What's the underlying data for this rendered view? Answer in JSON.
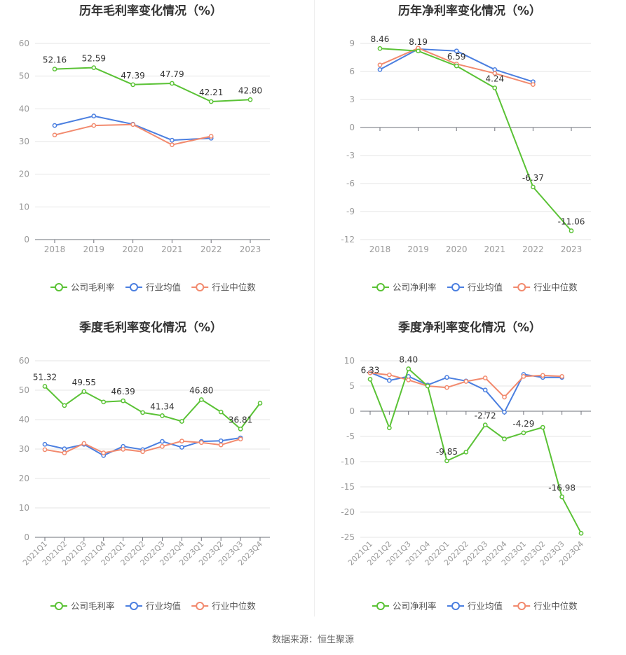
{
  "colors": {
    "company": "#5ac235",
    "industry_avg": "#4b7fe0",
    "industry_median": "#f28a6e",
    "grid": "#e6e6e6",
    "axis": "#6e7079",
    "tick_text": "#9a9a9a",
    "label_text": "#333333"
  },
  "footer": {
    "source": "数据来源：恒生聚源"
  },
  "chart_data": [
    {
      "type": "line",
      "title": "历年毛利率变化情况（%）",
      "categories": [
        "2018",
        "2019",
        "2020",
        "2021",
        "2022",
        "2023"
      ],
      "ylim": [
        0,
        60
      ],
      "yticks": [
        0,
        10,
        20,
        30,
        40,
        50,
        60
      ],
      "rotate_x": false,
      "series": [
        {
          "name": "公司毛利率",
          "color_key": "company",
          "values": [
            52.16,
            52.59,
            47.39,
            47.79,
            42.21,
            42.8
          ],
          "labels": [
            "52.16",
            "52.59",
            "47.39",
            "47.79",
            "42.21",
            "42.80"
          ]
        },
        {
          "name": "行业均值",
          "color_key": "industry_avg",
          "values": [
            34.9,
            37.8,
            35.3,
            30.4,
            31.0,
            null
          ]
        },
        {
          "name": "行业中位数",
          "color_key": "industry_median",
          "values": [
            32.0,
            34.9,
            35.2,
            29.0,
            31.6,
            null
          ]
        }
      ]
    },
    {
      "type": "line",
      "title": "历年净利率变化情况（%）",
      "categories": [
        "2018",
        "2019",
        "2020",
        "2021",
        "2022",
        "2023"
      ],
      "ylim": [
        -12,
        9
      ],
      "yticks": [
        -12,
        -9,
        -6,
        -3,
        0,
        3,
        6,
        9
      ],
      "rotate_x": false,
      "series": [
        {
          "name": "公司净利率",
          "color_key": "company",
          "values": [
            8.46,
            8.19,
            6.59,
            4.24,
            -6.37,
            -11.06
          ],
          "labels": [
            "8.46",
            "8.19",
            "6.59",
            "4.24",
            "-6.37",
            "-11.06"
          ]
        },
        {
          "name": "行业均值",
          "color_key": "industry_avg",
          "values": [
            6.2,
            8.4,
            8.2,
            6.2,
            4.9,
            null
          ]
        },
        {
          "name": "行业中位数",
          "color_key": "industry_median",
          "values": [
            6.7,
            8.5,
            6.8,
            5.8,
            4.6,
            null
          ]
        }
      ]
    },
    {
      "type": "line",
      "title": "季度毛利率变化情况（%）",
      "categories": [
        "2021Q1",
        "2021Q2",
        "2021Q3",
        "2021Q4",
        "2022Q1",
        "2022Q2",
        "2022Q3",
        "2022Q4",
        "2023Q1",
        "2023Q2",
        "2023Q3",
        "2023Q4"
      ],
      "ylim": [
        0,
        60
      ],
      "yticks": [
        0,
        10,
        20,
        30,
        40,
        50,
        60
      ],
      "rotate_x": true,
      "series": [
        {
          "name": "公司毛利率",
          "color_key": "company",
          "values": [
            51.32,
            44.8,
            49.55,
            46.0,
            46.39,
            42.4,
            41.34,
            39.4,
            46.8,
            42.6,
            36.81,
            45.6
          ],
          "labels": [
            "51.32",
            null,
            "49.55",
            null,
            "46.39",
            null,
            "41.34",
            null,
            "46.80",
            null,
            "36.81",
            null
          ]
        },
        {
          "name": "行业均值",
          "color_key": "industry_avg",
          "values": [
            31.6,
            30.1,
            31.6,
            27.8,
            30.9,
            29.8,
            32.6,
            30.6,
            32.6,
            32.8,
            33.8,
            null
          ]
        },
        {
          "name": "行业中位数",
          "color_key": "industry_median",
          "values": [
            29.8,
            28.7,
            31.9,
            28.7,
            29.9,
            29.1,
            30.9,
            32.7,
            32.2,
            31.4,
            33.4,
            null
          ]
        }
      ]
    },
    {
      "type": "line",
      "title": "季度净利率变化情况（%）",
      "categories": [
        "2021Q1",
        "2021Q2",
        "2021Q3",
        "2021Q4",
        "2022Q1",
        "2022Q2",
        "2022Q3",
        "2022Q4",
        "2023Q1",
        "2023Q2",
        "2023Q3",
        "2023Q4"
      ],
      "ylim": [
        -25,
        10
      ],
      "yticks": [
        -25,
        -20,
        -15,
        -10,
        -5,
        0,
        5,
        10
      ],
      "rotate_x": true,
      "series": [
        {
          "name": "公司净利率",
          "color_key": "company",
          "values": [
            6.33,
            -3.3,
            8.4,
            5.0,
            -9.85,
            -8.1,
            -2.72,
            -5.5,
            -4.29,
            -3.2,
            -16.98,
            -24.2
          ],
          "labels": [
            "6.33",
            null,
            "8.40",
            null,
            "-9.85",
            null,
            "-2.72",
            null,
            "-4.29",
            null,
            "-16.98",
            null
          ]
        },
        {
          "name": "行业均值",
          "color_key": "industry_avg",
          "values": [
            7.7,
            6.1,
            6.9,
            5.2,
            6.7,
            6.0,
            4.2,
            -0.2,
            7.3,
            6.7,
            6.7,
            null
          ]
        },
        {
          "name": "行业中位数",
          "color_key": "industry_median",
          "values": [
            7.6,
            7.2,
            6.2,
            5.0,
            4.7,
            5.9,
            6.6,
            2.8,
            6.9,
            7.1,
            6.9,
            null
          ]
        }
      ]
    }
  ]
}
